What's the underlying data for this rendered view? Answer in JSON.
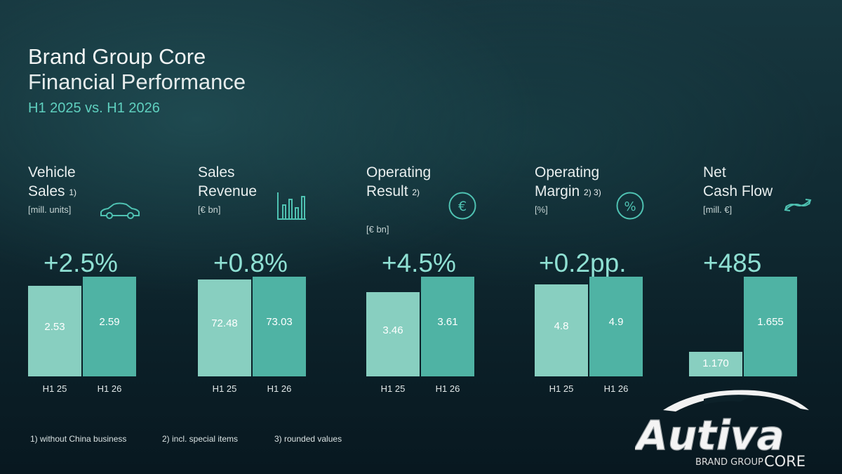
{
  "header": {
    "title_line1": "Brand Group Core",
    "title_line2": "Financial Performance",
    "subtitle": "H1 2025 vs. H1 2026"
  },
  "colors": {
    "bar_h1_25": "#88cfc0",
    "bar_h1_26": "#4fb3a4",
    "accent_text": "#5fd0bf",
    "change_text": "#8fe0d3"
  },
  "chart_data": [
    {
      "type": "bar",
      "title": "Vehicle Sales",
      "footnote_ref": "1)",
      "unit": "[mill. units]",
      "icon": "car-icon",
      "change": "+2.5%",
      "categories": [
        "H1 25",
        "H1 26"
      ],
      "values": [
        2.53,
        2.59
      ],
      "value_labels": [
        "2.53",
        "2.59"
      ]
    },
    {
      "type": "bar",
      "title": "Sales Revenue",
      "footnote_ref": "",
      "unit": "[€ bn]",
      "icon": "bar-chart-icon",
      "change": "+0.8%",
      "categories": [
        "H1 25",
        "H1 26"
      ],
      "values": [
        72.48,
        73.03
      ],
      "value_labels": [
        "72.48",
        "73.03"
      ]
    },
    {
      "type": "bar",
      "title": "Operating Result",
      "footnote_ref": "2)",
      "unit": "[€ bn]",
      "icon": "euro-circle-icon",
      "change": "+4.5%",
      "categories": [
        "H1 25",
        "H1 26"
      ],
      "values": [
        3.46,
        3.61
      ],
      "value_labels": [
        "3.46",
        "3.61"
      ]
    },
    {
      "type": "bar",
      "title": "Operating Margin",
      "footnote_ref": "2) 3)",
      "unit": "[%]",
      "icon": "percent-circle-icon",
      "change": "+0.2pp.",
      "categories": [
        "H1 25",
        "H1 26"
      ],
      "values": [
        4.8,
        4.9
      ],
      "value_labels": [
        "4.8",
        "4.9"
      ]
    },
    {
      "type": "bar",
      "title": "Net Cash Flow",
      "footnote_ref": "",
      "unit": "[mill. €]",
      "icon": "cash-flow-arrows-icon",
      "change": "+485",
      "categories": [
        "H1 25",
        "H1 26"
      ],
      "values": [
        1170,
        1655
      ],
      "value_labels": [
        "1.170",
        "1.655"
      ]
    }
  ],
  "kpi_lines": [
    [
      "Vehicle",
      "Sales"
    ],
    [
      "Sales",
      "Revenue"
    ],
    [
      "Operating",
      "Result"
    ],
    [
      "Operating",
      "Margin"
    ],
    [
      "Net",
      "Cash Flow"
    ]
  ],
  "footnotes": [
    "1) without China business",
    "2) incl. special items",
    "3) rounded values"
  ],
  "logo": {
    "wordmark": "Autiva",
    "tagline": "BRAND GROUP",
    "tagline_bold": "CORE"
  }
}
